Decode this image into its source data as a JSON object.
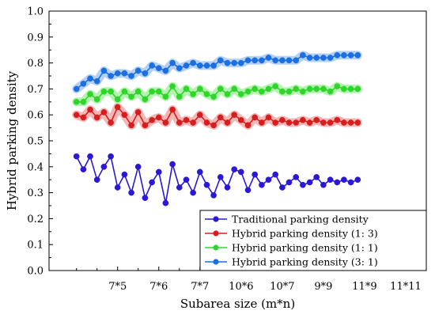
{
  "chart_data": {
    "type": "line",
    "xlabel": "Subarea size (m*n)",
    "ylabel": "Hybrid parking density",
    "ylim": [
      0.0,
      1.0
    ],
    "yticks": [
      "0.0",
      "0.1",
      "0.2",
      "0.3",
      "0.4",
      "0.5",
      "0.6",
      "0.7",
      "0.8",
      "0.9",
      "1.0"
    ],
    "xrange": [
      -4,
      51
    ],
    "xticks": [
      {
        "label": "7*5",
        "x": 6
      },
      {
        "label": "7*6",
        "x": 12
      },
      {
        "label": "7*7",
        "x": 18
      },
      {
        "label": "10*6",
        "x": 24
      },
      {
        "label": "10*7",
        "x": 30
      },
      {
        "label": "9*9",
        "x": 36
      },
      {
        "label": "11*9",
        "x": 42
      },
      {
        "label": "11*11",
        "x": 48
      }
    ],
    "grid": false,
    "legend_position": "bottom-right",
    "series": [
      {
        "name": "Traditional parking density",
        "color": "#2a18d6",
        "halo": false,
        "values": [
          0.44,
          0.39,
          0.44,
          0.35,
          0.4,
          0.44,
          0.32,
          0.37,
          0.3,
          0.4,
          0.28,
          0.34,
          0.38,
          0.26,
          0.41,
          0.32,
          0.35,
          0.3,
          0.38,
          0.33,
          0.29,
          0.36,
          0.32,
          0.39,
          0.38,
          0.31,
          0.37,
          0.33,
          0.35,
          0.37,
          0.32,
          0.34,
          0.36,
          0.33,
          0.34,
          0.36,
          0.33,
          0.35,
          0.34,
          0.35,
          0.34,
          0.35
        ]
      },
      {
        "name": "Hybrid parking density (1: 3)",
        "color": "#d61e1e",
        "halo": "#f5b6b6",
        "values": [
          0.6,
          0.59,
          0.62,
          0.59,
          0.61,
          0.57,
          0.63,
          0.6,
          0.56,
          0.61,
          0.56,
          0.58,
          0.59,
          0.57,
          0.62,
          0.57,
          0.58,
          0.57,
          0.6,
          0.57,
          0.56,
          0.59,
          0.57,
          0.6,
          0.58,
          0.56,
          0.59,
          0.57,
          0.59,
          0.57,
          0.58,
          0.57,
          0.57,
          0.58,
          0.57,
          0.58,
          0.57,
          0.57,
          0.58,
          0.57,
          0.57,
          0.57
        ]
      },
      {
        "name": "Hybrid parking density (1: 1)",
        "color": "#2ed62a",
        "halo": "#b4f3b0",
        "values": [
          0.65,
          0.65,
          0.68,
          0.66,
          0.69,
          0.69,
          0.66,
          0.69,
          0.67,
          0.69,
          0.66,
          0.69,
          0.69,
          0.67,
          0.71,
          0.67,
          0.7,
          0.68,
          0.7,
          0.68,
          0.67,
          0.7,
          0.68,
          0.7,
          0.68,
          0.69,
          0.7,
          0.69,
          0.7,
          0.71,
          0.69,
          0.69,
          0.7,
          0.69,
          0.7,
          0.7,
          0.7,
          0.69,
          0.71,
          0.7,
          0.7,
          0.7
        ]
      },
      {
        "name": "Hybrid parking density (3: 1)",
        "color": "#1c6fe0",
        "halo": "#b3d1f7",
        "values": [
          0.7,
          0.72,
          0.74,
          0.73,
          0.77,
          0.75,
          0.76,
          0.76,
          0.75,
          0.77,
          0.76,
          0.79,
          0.78,
          0.77,
          0.8,
          0.78,
          0.79,
          0.8,
          0.79,
          0.79,
          0.79,
          0.81,
          0.8,
          0.8,
          0.8,
          0.81,
          0.81,
          0.81,
          0.82,
          0.81,
          0.81,
          0.81,
          0.81,
          0.83,
          0.82,
          0.82,
          0.82,
          0.82,
          0.83,
          0.83,
          0.83,
          0.83
        ]
      }
    ]
  }
}
